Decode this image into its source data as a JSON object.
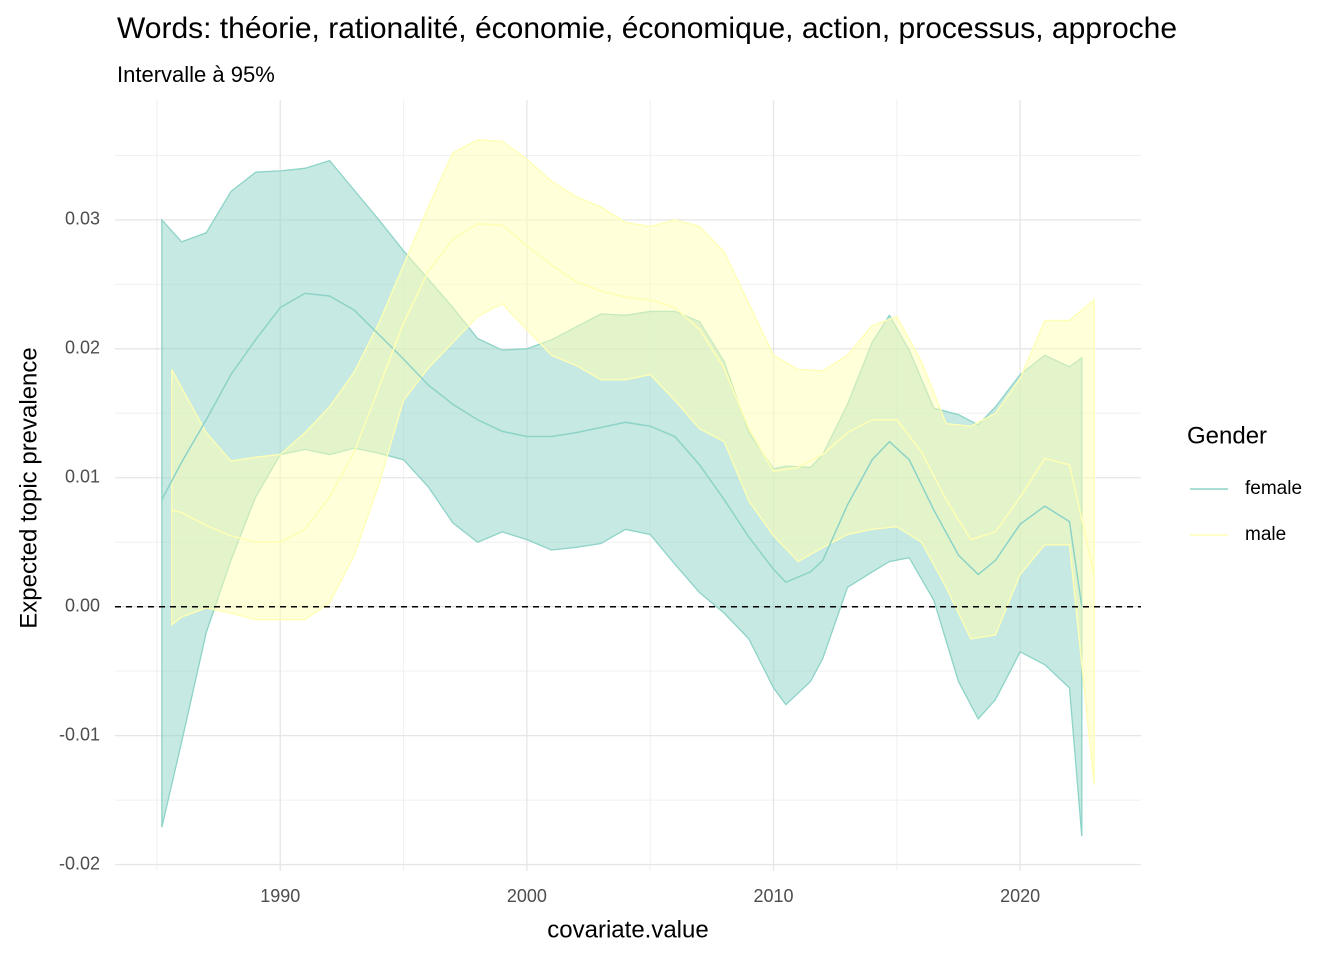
{
  "chart_data": {
    "type": "ribbon-line",
    "title": "Words: théorie, rationalité, économie, économique, action, processus, approche",
    "subtitle": "Intervalle à 95%",
    "x_label": "covariate.value",
    "y_label": "Expected topic prevalence",
    "xlim": [
      1983.3,
      2024.9
    ],
    "xticks": [
      1990,
      2000,
      2010,
      2020
    ],
    "xticks_minor": [
      1985,
      1995,
      2005,
      2015
    ],
    "ylim": [
      -0.0205,
      0.0393
    ],
    "yticks": [
      -0.02,
      -0.01,
      {
        "value": 0,
        "label": "0.00"
      },
      0.01,
      0.02,
      0.03
    ],
    "yticks_minor": [
      -0.015,
      -0.005,
      0.005,
      0.015,
      0.025,
      0.035
    ],
    "grid": true,
    "hline": 0,
    "legend_title": "Gender",
    "legend_position": "right",
    "series": [
      {
        "name": "female",
        "color": "#8dd3c7",
        "x": [
          1985.2,
          1986,
          1987,
          1988,
          1989,
          1990,
          1991,
          1992,
          1993,
          1994,
          1995,
          1996,
          1997,
          1998,
          1999,
          2000,
          2001,
          2002,
          2003,
          2004,
          2005,
          2006,
          2007,
          2008,
          2009,
          2010,
          2010.5,
          2011.5,
          2012,
          2013,
          2014,
          2014.7,
          2015.5,
          2016.5,
          2017.5,
          2018.3,
          2019,
          2020,
          2021,
          2022,
          2022.5
        ],
        "values": [
          0.0083,
          0.0112,
          0.0145,
          0.018,
          0.0207,
          0.0232,
          0.0243,
          0.0241,
          0.023,
          0.0211,
          0.0192,
          0.0172,
          0.0157,
          0.0145,
          0.0136,
          0.0132,
          0.0132,
          0.0135,
          0.0139,
          0.0143,
          0.014,
          0.0132,
          0.011,
          0.0083,
          0.0054,
          0.0029,
          0.0019,
          0.0027,
          0.0036,
          0.0079,
          0.0114,
          0.0128,
          0.0114,
          0.0075,
          0.004,
          0.0025,
          0.0036,
          0.0064,
          0.0078,
          0.0066,
          0.0
        ],
        "upper": [
          0.03,
          0.0283,
          0.029,
          0.0322,
          0.0337,
          0.0338,
          0.034,
          0.0346,
          0.0323,
          0.03,
          0.0276,
          0.0254,
          0.0232,
          0.0208,
          0.0199,
          0.02,
          0.0207,
          0.0217,
          0.0227,
          0.0226,
          0.0229,
          0.0229,
          0.0221,
          0.019,
          0.0135,
          0.0107,
          0.0109,
          0.0108,
          0.0118,
          0.0157,
          0.0205,
          0.0226,
          0.0199,
          0.0154,
          0.0149,
          0.0141,
          0.0155,
          0.018,
          0.0195,
          0.0186,
          0.0193
        ],
        "lower": [
          -0.0171,
          -0.0105,
          -0.002,
          0.0036,
          0.0085,
          0.0118,
          0.0122,
          0.0118,
          0.0123,
          0.0119,
          0.0114,
          0.0093,
          0.0065,
          0.005,
          0.0058,
          0.0052,
          0.0044,
          0.0046,
          0.0049,
          0.006,
          0.0056,
          0.0033,
          0.0011,
          -0.0005,
          -0.0025,
          -0.0063,
          -0.0076,
          -0.0058,
          -0.004,
          0.0015,
          0.0027,
          0.0035,
          0.0038,
          0.0005,
          -0.0058,
          -0.0087,
          -0.0072,
          -0.0035,
          -0.0045,
          -0.0063,
          -0.0178
        ]
      },
      {
        "name": "male",
        "color": "#ffffb3",
        "x": [
          1985.6,
          1986,
          1987,
          1988,
          1989,
          1990,
          1991,
          1992,
          1993,
          1994,
          1995,
          1996,
          1997,
          1998,
          1999,
          2000,
          2001,
          2002,
          2003,
          2004,
          2005,
          2006,
          2007,
          2008,
          2009,
          2010,
          2011,
          2012,
          2013,
          2014,
          2015,
          2016,
          2017,
          2018,
          2019,
          2020,
          2021,
          2022,
          2023
        ],
        "values": [
          0.0075,
          0.0073,
          0.0063,
          0.0055,
          0.005,
          0.005,
          0.006,
          0.0085,
          0.012,
          0.017,
          0.022,
          0.026,
          0.0285,
          0.0297,
          0.0296,
          0.028,
          0.0265,
          0.0252,
          0.0245,
          0.024,
          0.0238,
          0.0232,
          0.0215,
          0.0185,
          0.0138,
          0.0105,
          0.0108,
          0.0118,
          0.0135,
          0.0145,
          0.0145,
          0.012,
          0.0083,
          0.0052,
          0.0058,
          0.0085,
          0.0115,
          0.011,
          0.0025
        ],
        "upper": [
          0.0184,
          0.017,
          0.0135,
          0.0113,
          0.0116,
          0.0118,
          0.0135,
          0.0155,
          0.0182,
          0.022,
          0.0265,
          0.031,
          0.0352,
          0.0362,
          0.0361,
          0.0347,
          0.033,
          0.0318,
          0.031,
          0.0298,
          0.0295,
          0.03,
          0.0295,
          0.0275,
          0.0235,
          0.0195,
          0.0184,
          0.0183,
          0.0195,
          0.0218,
          0.0225,
          0.019,
          0.0142,
          0.014,
          0.015,
          0.0177,
          0.0222,
          0.0222,
          0.0238
        ],
        "lower": [
          -0.0014,
          -0.0008,
          -0.0001,
          -0.0005,
          -0.001,
          -0.001,
          -0.001,
          0.0003,
          0.004,
          0.0095,
          0.016,
          0.0185,
          0.0205,
          0.0225,
          0.0235,
          0.0215,
          0.0195,
          0.0187,
          0.0176,
          0.0176,
          0.018,
          0.016,
          0.0138,
          0.0128,
          0.0082,
          0.0055,
          0.0035,
          0.0046,
          0.0056,
          0.006,
          0.0062,
          0.005,
          0.0015,
          -0.0025,
          -0.0022,
          0.0025,
          0.0048,
          0.0048,
          -0.0138
        ]
      }
    ]
  }
}
